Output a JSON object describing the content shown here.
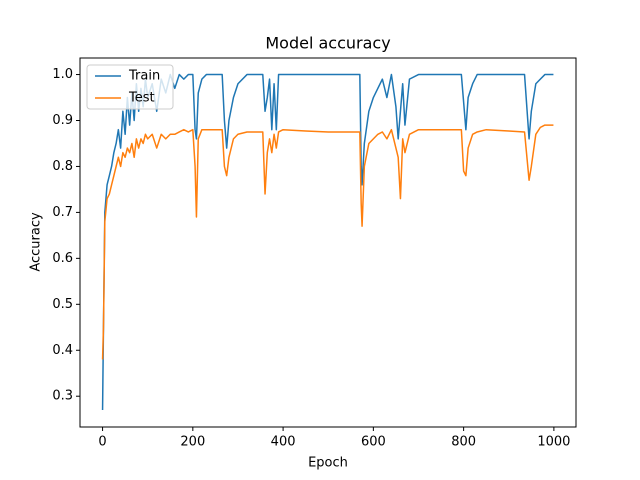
{
  "chart_data": {
    "type": "line",
    "title": "Model accuracy",
    "x_label": "Epoch",
    "y_label": "Accuracy",
    "x": [
      0,
      2,
      5,
      10,
      15,
      20,
      25,
      30,
      35,
      40,
      45,
      50,
      55,
      60,
      65,
      70,
      75,
      80,
      85,
      90,
      95,
      100,
      110,
      120,
      130,
      140,
      150,
      160,
      170,
      180,
      190,
      200,
      205,
      208,
      212,
      220,
      230,
      250,
      265,
      270,
      275,
      280,
      290,
      300,
      320,
      340,
      355,
      360,
      365,
      370,
      375,
      380,
      385,
      390,
      400,
      450,
      500,
      550,
      570,
      573,
      575,
      580,
      590,
      600,
      610,
      620,
      630,
      640,
      650,
      655,
      660,
      665,
      670,
      680,
      700,
      750,
      795,
      800,
      805,
      810,
      820,
      830,
      850,
      900,
      935,
      945,
      950,
      960,
      970,
      980,
      999
    ],
    "series": [
      {
        "name": "Train",
        "color": "#1f77b4",
        "values": [
          0.27,
          0.45,
          0.7,
          0.76,
          0.78,
          0.8,
          0.83,
          0.85,
          0.88,
          0.84,
          0.92,
          0.87,
          0.95,
          0.89,
          0.96,
          0.9,
          0.98,
          0.92,
          0.97,
          0.93,
          0.99,
          0.95,
          0.98,
          0.92,
          0.99,
          0.96,
          1.0,
          0.97,
          1.0,
          0.99,
          1.0,
          1.0,
          0.88,
          0.86,
          0.96,
          0.99,
          1.0,
          1.0,
          1.0,
          0.9,
          0.84,
          0.9,
          0.95,
          0.98,
          1.0,
          1.0,
          1.0,
          0.92,
          0.95,
          0.99,
          0.88,
          0.98,
          0.88,
          1.0,
          1.0,
          1.0,
          1.0,
          1.0,
          1.0,
          0.8,
          0.76,
          0.85,
          0.92,
          0.95,
          0.97,
          0.99,
          0.95,
          1.0,
          0.93,
          0.86,
          0.92,
          0.98,
          0.89,
          0.99,
          1.0,
          1.0,
          1.0,
          0.94,
          0.88,
          0.95,
          0.98,
          1.0,
          1.0,
          1.0,
          1.0,
          0.86,
          0.92,
          0.98,
          0.99,
          1.0,
          1.0
        ]
      },
      {
        "name": "Test",
        "color": "#ff7f0e",
        "values": [
          0.38,
          0.45,
          0.68,
          0.73,
          0.74,
          0.76,
          0.78,
          0.8,
          0.82,
          0.8,
          0.83,
          0.82,
          0.84,
          0.83,
          0.85,
          0.82,
          0.86,
          0.84,
          0.86,
          0.85,
          0.87,
          0.86,
          0.87,
          0.84,
          0.87,
          0.86,
          0.87,
          0.87,
          0.875,
          0.88,
          0.875,
          0.88,
          0.8,
          0.69,
          0.86,
          0.88,
          0.88,
          0.88,
          0.88,
          0.8,
          0.78,
          0.82,
          0.86,
          0.87,
          0.875,
          0.875,
          0.875,
          0.74,
          0.83,
          0.86,
          0.83,
          0.87,
          0.84,
          0.875,
          0.88,
          0.877,
          0.875,
          0.875,
          0.875,
          0.72,
          0.67,
          0.8,
          0.85,
          0.86,
          0.87,
          0.875,
          0.86,
          0.88,
          0.84,
          0.82,
          0.73,
          0.86,
          0.83,
          0.87,
          0.88,
          0.88,
          0.88,
          0.79,
          0.78,
          0.84,
          0.87,
          0.875,
          0.88,
          0.877,
          0.875,
          0.77,
          0.8,
          0.87,
          0.885,
          0.89,
          0.89
        ]
      }
    ],
    "xlim": [
      -50,
      1049
    ],
    "ylim": [
      0.233,
      1.036
    ],
    "xticks": [
      0,
      200,
      400,
      600,
      800,
      1000
    ],
    "yticks": [
      0.3,
      0.4,
      0.5,
      0.6,
      0.7,
      0.8,
      0.9,
      {
        "value": 1,
        "label": "1.0"
      }
    ],
    "legend": "upper left",
    "grid": false
  }
}
